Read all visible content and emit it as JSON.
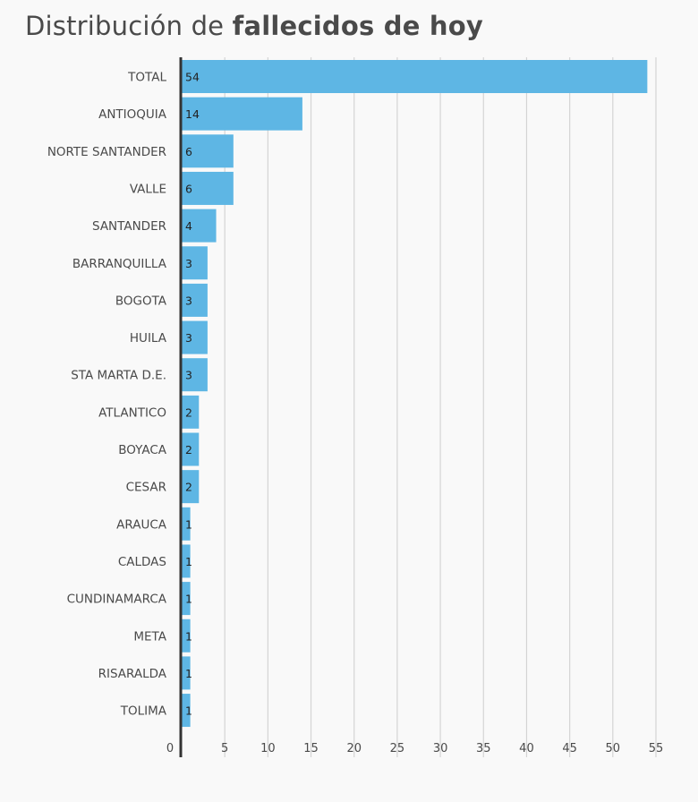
{
  "title": {
    "prefix": "Distribución de",
    "bold": "fallecidos de hoy"
  },
  "colors": {
    "bar": "#5eb6e4",
    "grid": "#d4d4d4",
    "axis": "#333333",
    "label": "#4a4a4a",
    "value_label": "#222222",
    "background": "#f9f9f9"
  },
  "chart_data": {
    "type": "bar",
    "orientation": "horizontal",
    "title": "Distribución de fallecidos de hoy",
    "categories": [
      "TOTAL",
      "ANTIOQUIA",
      "NORTE SANTANDER",
      "VALLE",
      "SANTANDER",
      "BARRANQUILLA",
      "BOGOTA",
      "HUILA",
      "STA MARTA D.E.",
      "ATLANTICO",
      "BOYACA",
      "CESAR",
      "ARAUCA",
      "CALDAS",
      "CUNDINAMARCA",
      "META",
      "RISARALDA",
      "TOLIMA"
    ],
    "values": [
      54,
      14,
      6,
      6,
      4,
      3,
      3,
      3,
      3,
      2,
      2,
      2,
      1,
      1,
      1,
      1,
      1,
      1
    ],
    "xlim": [
      0,
      55
    ],
    "x_ticks": [
      0,
      5,
      10,
      15,
      20,
      25,
      30,
      35,
      40,
      45,
      50,
      55
    ],
    "grid": true,
    "data_labels": true
  }
}
